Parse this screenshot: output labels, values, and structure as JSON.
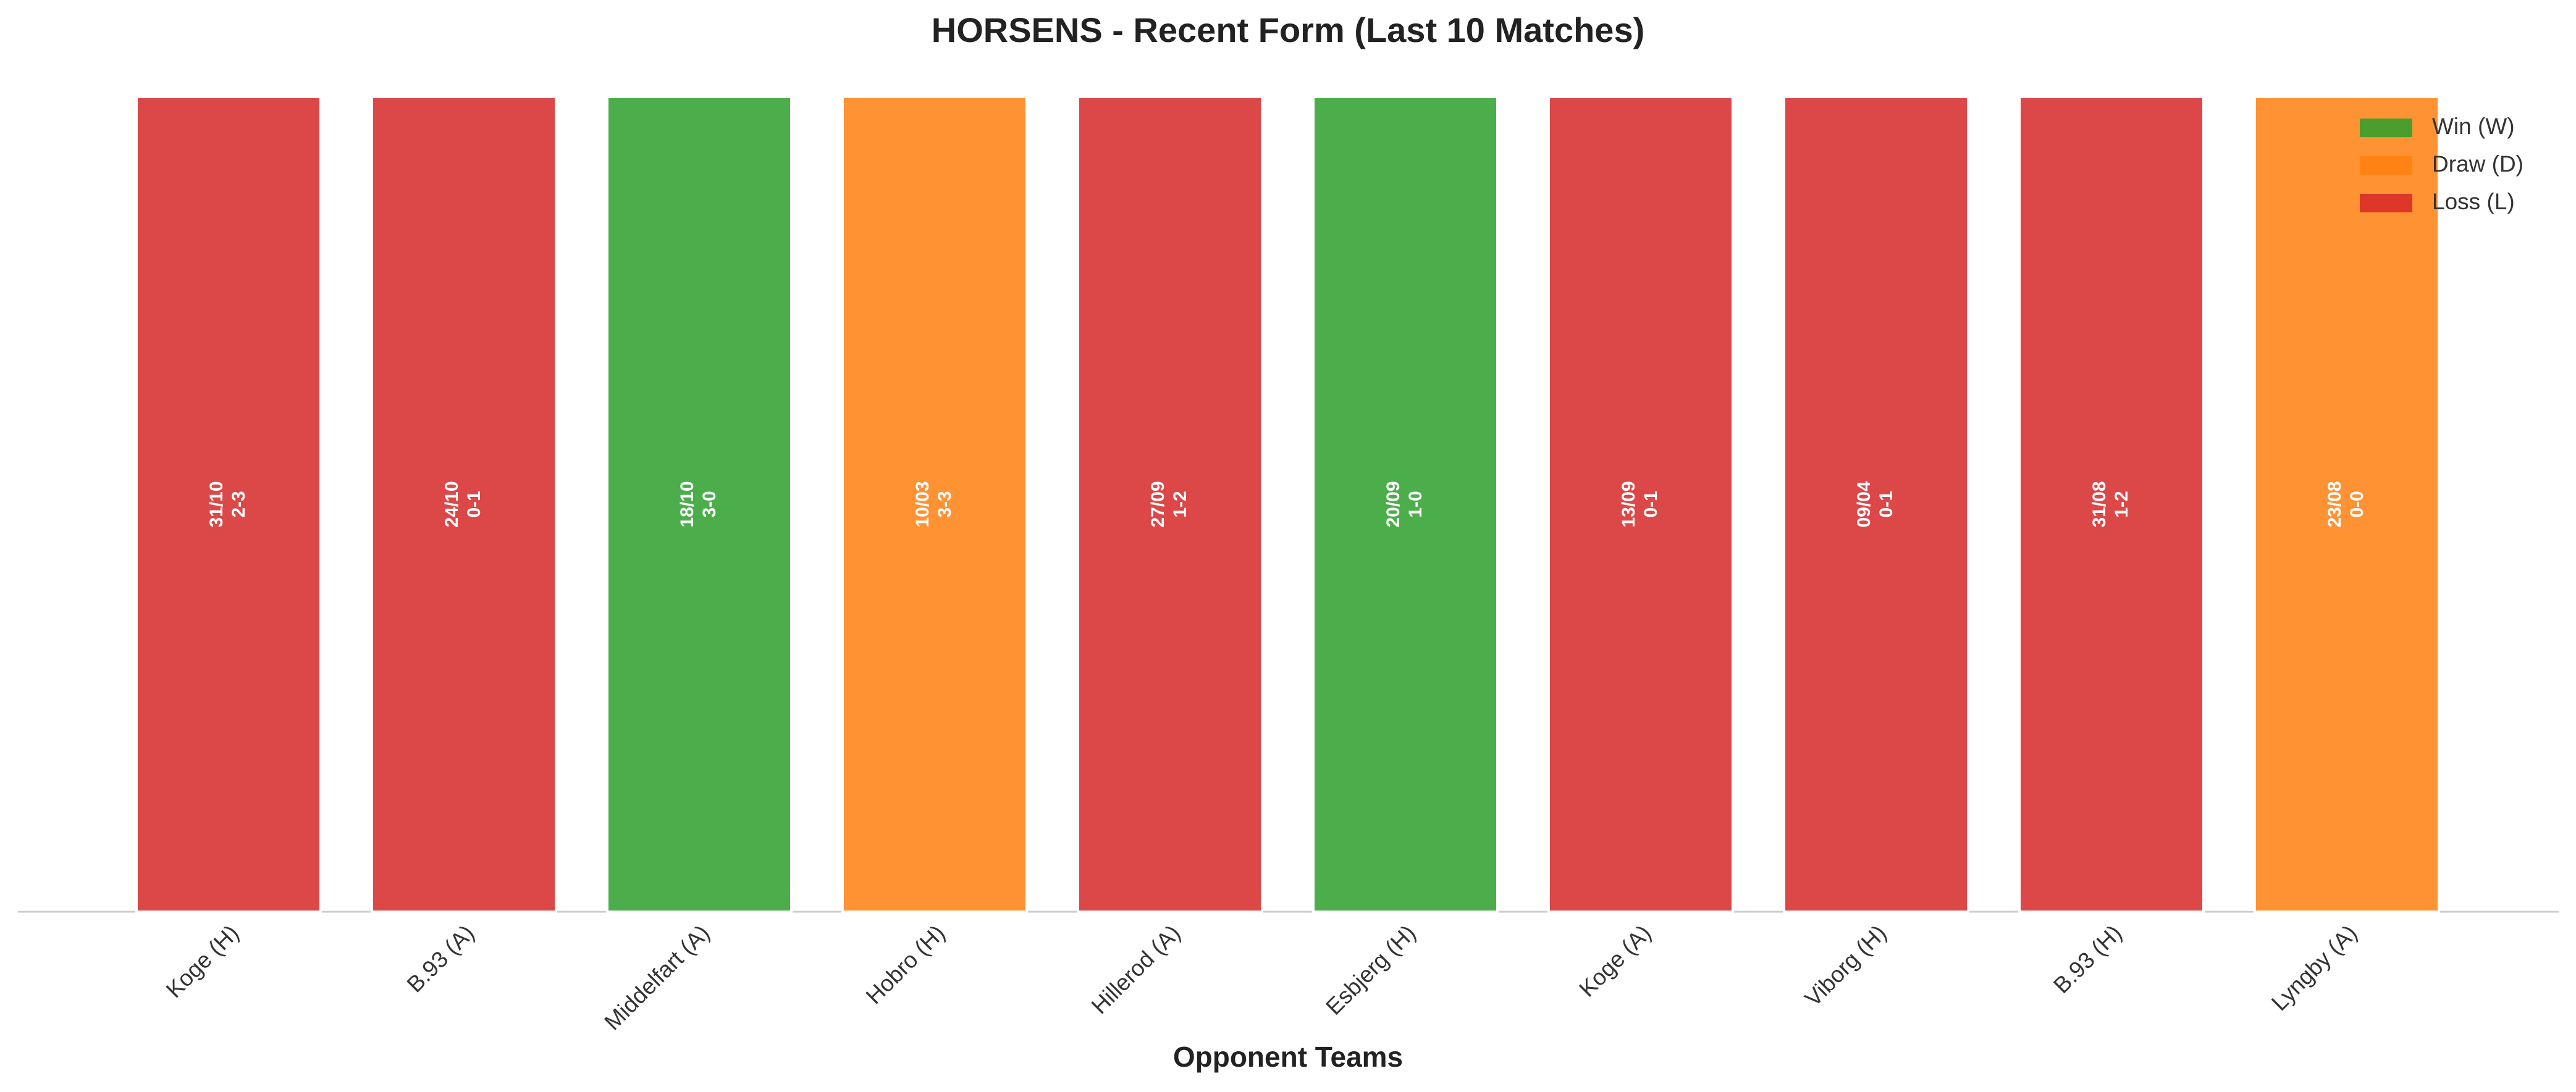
{
  "chart_data": {
    "type": "bar",
    "title": "HORSENS - Recent Form (Last 10 Matches)",
    "x_label": "Opponent Teams",
    "categories": [
      "Koge (H)",
      "B.93 (A)",
      "Middelfart (A)",
      "Hobro (H)",
      "Hillerod (A)",
      "Esbjerg (H)",
      "Koge (A)",
      "Viborg (H)",
      "B.93 (H)",
      "Lyngby (A)"
    ],
    "values": [
      1,
      1,
      1,
      1,
      1,
      1,
      1,
      1,
      1,
      1
    ],
    "dates": [
      "31/10",
      "24/10",
      "18/10",
      "10/03",
      "27/09",
      "20/09",
      "13/09",
      "09/04",
      "31/08",
      "23/08"
    ],
    "scores": [
      "2-3",
      "0-1",
      "3-0",
      "3-3",
      "1-2",
      "1-0",
      "0-1",
      "0-1",
      "1-2",
      "0-0"
    ],
    "colors": [
      "#d62728",
      "#d62728",
      "#2ca02c",
      "#ff7f0e",
      "#d62728",
      "#2ca02c",
      "#d62728",
      "#d62728",
      "#d62728",
      "#ff7f0e"
    ],
    "ylim": [
      0,
      1
    ],
    "legend": [
      {
        "name": "Win (W)",
        "color": "#2ca02c"
      },
      {
        "name": "Draw (D)",
        "color": "#ff7f0e"
      },
      {
        "name": "Loss (L)",
        "color": "#d62728"
      }
    ],
    "legend_position": "upper right"
  }
}
